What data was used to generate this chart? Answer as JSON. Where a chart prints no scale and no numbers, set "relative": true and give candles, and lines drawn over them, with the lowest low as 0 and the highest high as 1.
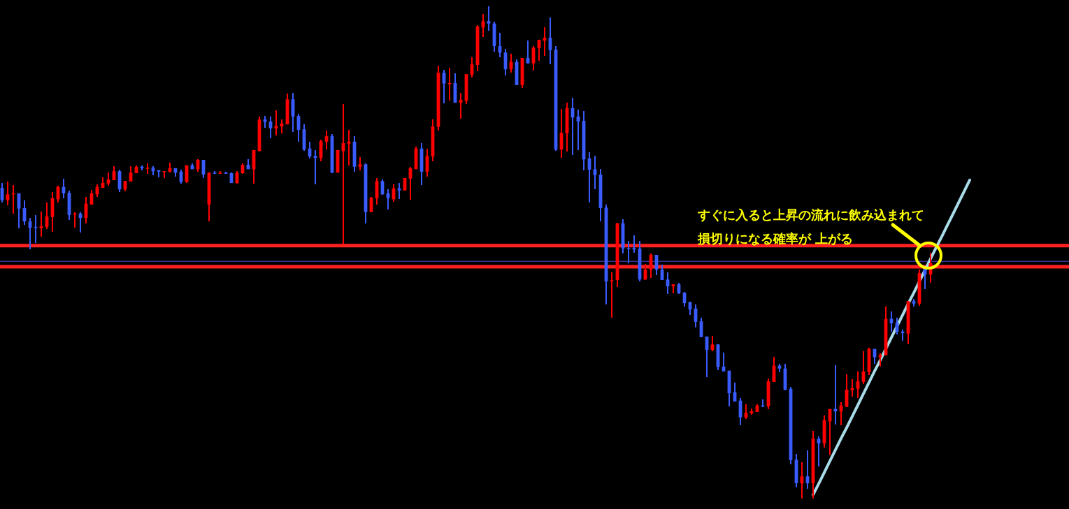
{
  "chart_data": {
    "type": "candlestick",
    "relative": true,
    "categories": [
      null,
      null,
      null,
      null,
      null,
      null,
      null,
      null,
      null,
      null,
      null,
      null,
      null,
      null,
      null,
      null,
      null,
      null,
      null,
      null,
      null,
      null,
      null,
      null,
      null,
      null,
      null,
      null,
      null,
      null,
      null,
      null,
      null,
      null,
      null,
      null,
      null,
      null,
      null,
      null,
      null,
      null,
      null,
      null,
      null,
      null,
      null,
      null,
      null,
      null,
      null,
      null,
      null,
      null,
      null,
      null,
      null,
      null,
      null,
      null,
      null,
      null,
      null,
      null,
      null,
      null,
      null,
      null,
      null,
      null,
      null,
      null,
      null,
      null,
      null,
      null,
      null,
      null,
      null,
      null,
      null,
      null,
      null,
      null,
      null,
      null,
      null,
      null,
      null,
      null,
      null,
      null,
      null,
      null,
      null,
      null,
      null,
      null,
      null,
      null,
      null,
      null,
      null,
      null,
      null,
      null,
      null,
      null,
      null,
      null,
      null,
      null,
      null,
      null,
      null,
      null,
      null,
      null,
      null,
      null,
      null,
      null,
      null,
      null,
      null,
      null,
      null,
      null,
      null,
      null,
      null,
      null,
      null,
      null,
      null,
      null,
      null,
      null,
      null,
      null,
      null,
      null,
      null,
      null,
      null,
      null,
      null,
      null,
      null,
      null,
      null,
      null,
      null,
      null,
      null,
      null,
      null,
      null,
      null,
      null,
      null,
      null,
      null,
      null,
      null,
      null,
      null,
      null,
      null,
      null,
      null,
      null,
      null,
      null
    ],
    "annotations": [
      "すぐに入ると上昇の流れに飲み込まれて",
      "損切りになる確率が 上がる"
    ],
    "ref_lines": [
      {
        "axis": "y",
        "value": 0.514,
        "label": null,
        "color": "#ff2020",
        "line_style": "solid"
      },
      {
        "axis": "y",
        "value": 0.471,
        "label": null,
        "color": "#ff2020",
        "line_style": "solid"
      },
      {
        "axis": "y",
        "value": 0.482,
        "label": null,
        "color": "#4a4ad0",
        "line_style": "solid"
      }
    ],
    "series": [
      {
        "type": "candlestick",
        "ohlc": [
          [
            0.631,
            0.641,
            0.601,
            0.606
          ],
          [
            0.606,
            0.644,
            0.596,
            0.618
          ],
          [
            0.618,
            0.637,
            0.579,
            0.62
          ],
          [
            0.62,
            0.62,
            0.549,
            0.589
          ],
          [
            0.59,
            0.606,
            0.556,
            0.563
          ],
          [
            0.563,
            0.57,
            0.506,
            0.55
          ],
          [
            0.552,
            0.576,
            0.519,
            0.55
          ],
          [
            0.549,
            0.583,
            0.532,
            0.553
          ],
          [
            0.552,
            0.601,
            0.548,
            0.573
          ],
          [
            0.572,
            0.623,
            0.542,
            0.61
          ],
          [
            0.608,
            0.635,
            0.601,
            0.633
          ],
          [
            0.633,
            0.65,
            0.61,
            0.62
          ],
          [
            0.621,
            0.626,
            0.566,
            0.576
          ],
          [
            0.577,
            0.582,
            0.55,
            0.579
          ],
          [
            0.579,
            0.582,
            0.54,
            0.57
          ],
          [
            0.57,
            0.613,
            0.559,
            0.599
          ],
          [
            0.597,
            0.627,
            0.597,
            0.62
          ],
          [
            0.618,
            0.638,
            0.613,
            0.633
          ],
          [
            0.631,
            0.652,
            0.631,
            0.641
          ],
          [
            0.64,
            0.662,
            0.635,
            0.648
          ],
          [
            0.647,
            0.675,
            0.647,
            0.665
          ],
          [
            0.665,
            0.668,
            0.623,
            0.628
          ],
          [
            0.628,
            0.645,
            0.624,
            0.645
          ],
          [
            0.644,
            0.675,
            0.644,
            0.662
          ],
          [
            0.661,
            0.677,
            0.661,
            0.674
          ],
          [
            0.674,
            0.677,
            0.667,
            0.671
          ],
          [
            0.671,
            0.681,
            0.66,
            0.672
          ],
          [
            0.672,
            0.675,
            0.657,
            0.665
          ],
          [
            0.667,
            0.667,
            0.652,
            0.664
          ],
          [
            0.664,
            0.665,
            0.651,
            0.665
          ],
          [
            0.664,
            0.682,
            0.662,
            0.671
          ],
          [
            0.671,
            0.671,
            0.654,
            0.662
          ],
          [
            0.664,
            0.668,
            0.64,
            0.643
          ],
          [
            0.643,
            0.677,
            0.641,
            0.677
          ],
          [
            0.677,
            0.681,
            0.669,
            0.669
          ],
          [
            0.669,
            0.689,
            0.664,
            0.688
          ],
          [
            0.688,
            0.688,
            0.651,
            0.658
          ],
          [
            0.597,
            0.662,
            0.563,
            0.662
          ],
          [
            0.662,
            0.665,
            0.66,
            0.661
          ],
          [
            0.661,
            0.665,
            0.66,
            0.662
          ],
          [
            0.662,
            0.664,
            0.66,
            0.661
          ],
          [
            0.661,
            0.662,
            0.641,
            0.641
          ],
          [
            0.641,
            0.665,
            0.64,
            0.662
          ],
          [
            0.661,
            0.681,
            0.66,
            0.678
          ],
          [
            0.678,
            0.689,
            0.669,
            0.669
          ],
          [
            0.669,
            0.708,
            0.64,
            0.708
          ],
          [
            0.706,
            0.776,
            0.705,
            0.77
          ],
          [
            0.77,
            0.777,
            0.753,
            0.765
          ],
          [
            0.766,
            0.776,
            0.732,
            0.752
          ],
          [
            0.752,
            0.789,
            0.738,
            0.757
          ],
          [
            0.756,
            0.77,
            0.742,
            0.762
          ],
          [
            0.76,
            0.823,
            0.76,
            0.811
          ],
          [
            0.811,
            0.824,
            0.745,
            0.776
          ],
          [
            0.777,
            0.782,
            0.725,
            0.749
          ],
          [
            0.75,
            0.76,
            0.706,
            0.709
          ],
          [
            0.711,
            0.725,
            0.691,
            0.695
          ],
          [
            0.696,
            0.708,
            0.638,
            0.692
          ],
          [
            0.692,
            0.729,
            0.685,
            0.726
          ],
          [
            0.725,
            0.748,
            0.709,
            0.736
          ],
          [
            0.736,
            0.74,
            0.661,
            0.662
          ],
          [
            0.662,
            0.708,
            0.662,
            0.708
          ],
          [
            0.706,
            0.801,
            0.516,
            0.722
          ],
          [
            0.721,
            0.749,
            0.677,
            0.725
          ],
          [
            0.725,
            0.736,
            0.664,
            0.674
          ],
          [
            0.674,
            0.694,
            0.667,
            0.679
          ],
          [
            0.679,
            0.681,
            0.559,
            0.582
          ],
          [
            0.582,
            0.613,
            0.582,
            0.611
          ],
          [
            0.61,
            0.651,
            0.597,
            0.645
          ],
          [
            0.645,
            0.648,
            0.617,
            0.618
          ],
          [
            0.62,
            0.628,
            0.587,
            0.61
          ],
          [
            0.608,
            0.638,
            0.603,
            0.63
          ],
          [
            0.63,
            0.641,
            0.608,
            0.626
          ],
          [
            0.626,
            0.651,
            0.626,
            0.651
          ],
          [
            0.65,
            0.674,
            0.607,
            0.671
          ],
          [
            0.669,
            0.715,
            0.669,
            0.711
          ],
          [
            0.711,
            0.722,
            0.637,
            0.664
          ],
          [
            0.664,
            0.711,
            0.654,
            0.696
          ],
          [
            0.695,
            0.77,
            0.685,
            0.756
          ],
          [
            0.755,
            0.879,
            0.748,
            0.865
          ],
          [
            0.865,
            0.871,
            0.803,
            0.843
          ],
          [
            0.843,
            0.875,
            0.808,
            0.844
          ],
          [
            0.844,
            0.864,
            0.804,
            0.804
          ],
          [
            0.804,
            0.824,
            0.772,
            0.81
          ],
          [
            0.808,
            0.862,
            0.801,
            0.862
          ],
          [
            0.861,
            0.896,
            0.855,
            0.882
          ],
          [
            0.881,
            0.962,
            0.868,
            0.959
          ],
          [
            0.957,
            0.984,
            0.938,
            0.97
          ],
          [
            0.97,
            1,
            0.95,
            0.965
          ],
          [
            0.965,
            0.969,
            0.908,
            0.919
          ],
          [
            0.919,
            0.946,
            0.896,
            0.906
          ],
          [
            0.906,
            0.913,
            0.86,
            0.872
          ],
          [
            0.872,
            0.904,
            0.865,
            0.887
          ],
          [
            0.887,
            0.892,
            0.84,
            0.84
          ],
          [
            0.84,
            0.895,
            0.834,
            0.895
          ],
          [
            0.895,
            0.93,
            0.884,
            0.884
          ],
          [
            0.884,
            0.919,
            0.87,
            0.916
          ],
          [
            0.915,
            0.932,
            0.889,
            0.932
          ],
          [
            0.93,
            0.957,
            0.899,
            0.936
          ],
          [
            0.936,
            0.977,
            0.882,
            0.911
          ],
          [
            0.912,
            0.919,
            0.706,
            0.709
          ],
          [
            0.709,
            0.791,
            0.692,
            0.743
          ],
          [
            0.742,
            0.804,
            0.705,
            0.793
          ],
          [
            0.793,
            0.814,
            0.698,
            0.774
          ],
          [
            0.776,
            0.79,
            0.708,
            0.766
          ],
          [
            0.767,
            0.787,
            0.667,
            0.689
          ],
          [
            0.691,
            0.704,
            0.601,
            0.668
          ],
          [
            0.669,
            0.696,
            0.628,
            0.657
          ],
          [
            0.658,
            0.669,
            0.563,
            0.59
          ],
          [
            0.591,
            0.597,
            0.394,
            0.441
          ],
          [
            0.443,
            0.46,
            0.367,
            0.444
          ],
          [
            0.444,
            0.56,
            0.43,
            0.559
          ],
          [
            0.559,
            0.567,
            0.498,
            0.508
          ],
          [
            0.509,
            0.523,
            0.478,
            0.508
          ],
          [
            0.509,
            0.535,
            0.499,
            0.506
          ],
          [
            0.508,
            0.523,
            0.441,
            0.445
          ],
          [
            0.445,
            0.477,
            0.444,
            0.465
          ],
          [
            0.465,
            0.498,
            0.448,
            0.495
          ],
          [
            0.495,
            0.495,
            0.454,
            0.465
          ],
          [
            0.465,
            0.475,
            0.444,
            0.444
          ],
          [
            0.445,
            0.46,
            0.416,
            0.431
          ],
          [
            0.431,
            0.435,
            0.417,
            0.435
          ],
          [
            0.435,
            0.438,
            0.416,
            0.417
          ],
          [
            0.418,
            0.42,
            0.39,
            0.397
          ],
          [
            0.399,
            0.4,
            0.373,
            0.384
          ],
          [
            0.386,
            0.394,
            0.348,
            0.359
          ],
          [
            0.36,
            0.367,
            0.328,
            0.328
          ],
          [
            0.329,
            0.329,
            0.247,
            0.302
          ],
          [
            0.302,
            0.33,
            0.299,
            0.313
          ],
          [
            0.313,
            0.313,
            0.261,
            0.267
          ],
          [
            0.268,
            0.296,
            0.258,
            0.258
          ],
          [
            0.26,
            0.26,
            0.187,
            0.214
          ],
          [
            0.216,
            0.235,
            0.197,
            0.197
          ],
          [
            0.199,
            0.204,
            0.149,
            0.165
          ],
          [
            0.165,
            0.191,
            0.162,
            0.174
          ],
          [
            0.173,
            0.183,
            0.17,
            0.177
          ],
          [
            0.176,
            0.191,
            0.176,
            0.189
          ],
          [
            0.189,
            0.201,
            0.186,
            0.187
          ],
          [
            0.187,
            0.244,
            0.182,
            0.238
          ],
          [
            0.237,
            0.288,
            0.237,
            0.27
          ],
          [
            0.27,
            0.274,
            0.257,
            0.264
          ],
          [
            0.264,
            0.274,
            0.22,
            0.221
          ],
          [
            0.223,
            0.227,
            0.07,
            0.078
          ],
          [
            0.079,
            0.091,
            0.023,
            0.031
          ],
          [
            0.031,
            0.074,
            0,
            0.045
          ],
          [
            0.045,
            0.098,
            0.02,
            0.031
          ],
          [
            0.031,
            0.138,
            0,
            0.121
          ],
          [
            0.121,
            0.126,
            0.065,
            0.112
          ],
          [
            0.112,
            0.169,
            0.104,
            0.159
          ],
          [
            0.157,
            0.182,
            0.088,
            0.182
          ],
          [
            0.182,
            0.271,
            0.15,
            0.177
          ],
          [
            0.177,
            0.196,
            0.149,
            0.189
          ],
          [
            0.187,
            0.252,
            0.186,
            0.221
          ],
          [
            0.22,
            0.243,
            0.207,
            0.224
          ],
          [
            0.223,
            0.258,
            0.204,
            0.238
          ],
          [
            0.237,
            0.299,
            0.233,
            0.258
          ],
          [
            0.257,
            0.306,
            0.251,
            0.304
          ],
          [
            0.304,
            0.304,
            0.274,
            0.287
          ],
          [
            0.287,
            0.295,
            0.268,
            0.291
          ],
          [
            0.291,
            0.39,
            0.291,
            0.365
          ],
          [
            0.365,
            0.38,
            0.339,
            0.356
          ],
          [
            0.357,
            0.367,
            0.333,
            0.339
          ],
          [
            0.339,
            0.343,
            0.321,
            0.336
          ],
          [
            0.335,
            0.401,
            0.313,
            0.401
          ],
          [
            0.401,
            0.406,
            0.39,
            0.396
          ],
          [
            0.396,
            0.465,
            0.391,
            0.458
          ],
          [
            0.467,
            0.469,
            0.426,
            0.455
          ],
          [
            0.455,
            0.499,
            0.438,
            0.478
          ],
          null,
          null,
          null,
          null,
          null,
          null,
          null
        ],
        "colors": [
          "#3a5cff",
          "#ff0000",
          "#ff0000",
          "#3a5cff",
          "#3a5cff",
          "#3a5cff",
          "#3a5cff",
          "#ff0000",
          "#ff0000",
          "#ff0000",
          "#ff0000",
          "#3a5cff",
          "#3a5cff",
          "#ff0000",
          "#3a5cff",
          "#ff0000",
          "#ff0000",
          "#ff0000",
          "#ff0000",
          "#ff0000",
          "#ff0000",
          "#3a5cff",
          "#ff0000",
          "#ff0000",
          "#ff0000",
          "#3a5cff",
          "#ff0000",
          "#3a5cff",
          "#3a5cff",
          "#ff0000",
          "#ff0000",
          "#3a5cff",
          "#3a5cff",
          "#ff0000",
          "#3a5cff",
          "#ff0000",
          "#3a5cff",
          "#ff0000",
          "#3a5cff",
          "#ff0000",
          "#3a5cff",
          "#3a5cff",
          "#ff0000",
          "#ff0000",
          "#3a5cff",
          "#ff0000",
          "#ff0000",
          "#3a5cff",
          "#3a5cff",
          "#ff0000",
          "#ff0000",
          "#ff0000",
          "#3a5cff",
          "#3a5cff",
          "#3a5cff",
          "#3a5cff",
          "#3a5cff",
          "#ff0000",
          "#ff0000",
          "#3a5cff",
          "#ff0000",
          "#ff0000",
          "#ff0000",
          "#3a5cff",
          "#ff0000",
          "#3a5cff",
          "#ff0000",
          "#ff0000",
          "#3a5cff",
          "#3a5cff",
          "#ff0000",
          "#3a5cff",
          "#ff0000",
          "#ff0000",
          "#ff0000",
          "#3a5cff",
          "#ff0000",
          "#ff0000",
          "#ff0000",
          "#3a5cff",
          "#ff0000",
          "#3a5cff",
          "#ff0000",
          "#ff0000",
          "#ff0000",
          "#ff0000",
          "#ff0000",
          "#3a5cff",
          "#3a5cff",
          "#3a5cff",
          "#3a5cff",
          "#ff0000",
          "#3a5cff",
          "#ff0000",
          "#3a5cff",
          "#ff0000",
          "#ff0000",
          "#ff0000",
          "#3a5cff",
          "#3a5cff",
          "#ff0000",
          "#ff0000",
          "#3a5cff",
          "#3a5cff",
          "#3a5cff",
          "#3a5cff",
          "#3a5cff",
          "#3a5cff",
          "#3a5cff",
          "#ff0000",
          "#ff0000",
          "#3a5cff",
          "#3a5cff",
          "#3a5cff",
          "#3a5cff",
          "#ff0000",
          "#ff0000",
          "#3a5cff",
          "#3a5cff",
          "#3a5cff",
          "#ff0000",
          "#3a5cff",
          "#3a5cff",
          "#3a5cff",
          "#3a5cff",
          "#3a5cff",
          "#3a5cff",
          "#ff0000",
          "#3a5cff",
          "#3a5cff",
          "#3a5cff",
          "#3a5cff",
          "#3a5cff",
          "#ff0000",
          "#ff0000",
          "#ff0000",
          "#3a5cff",
          "#ff0000",
          "#ff0000",
          "#3a5cff",
          "#3a5cff",
          "#3a5cff",
          "#3a5cff",
          "#ff0000",
          "#3a5cff",
          "#ff0000",
          "#3a5cff",
          "#ff0000",
          "#ff0000",
          "#3a5cff",
          "#ff0000",
          "#ff0000",
          "#ff0000",
          "#ff0000",
          "#ff0000",
          "#ff0000",
          "#3a5cff",
          "#ff0000",
          "#ff0000",
          "#3a5cff",
          "#3a5cff",
          "#3a5cff",
          "#ff0000",
          "#3a5cff",
          "#ff0000",
          "#3a5cff",
          "#ff0000",
          null,
          null,
          null,
          null,
          null,
          null,
          null
        ]
      },
      {
        "type": "line",
        "color": "#a8dce8",
        "values": [
          null,
          null,
          null,
          null,
          null,
          null,
          null,
          null,
          null,
          null,
          null,
          null,
          null,
          null,
          null,
          null,
          null,
          null,
          null,
          null,
          null,
          null,
          null,
          null,
          null,
          null,
          null,
          null,
          null,
          null,
          null,
          null,
          null,
          null,
          null,
          null,
          null,
          null,
          null,
          null,
          null,
          null,
          null,
          null,
          null,
          null,
          null,
          null,
          null,
          null,
          null,
          null,
          null,
          null,
          null,
          null,
          null,
          null,
          null,
          null,
          null,
          null,
          null,
          null,
          null,
          null,
          null,
          null,
          null,
          null,
          null,
          null,
          null,
          null,
          null,
          null,
          null,
          null,
          null,
          null,
          null,
          null,
          null,
          null,
          null,
          null,
          null,
          null,
          null,
          null,
          null,
          null,
          null,
          null,
          null,
          null,
          null,
          null,
          null,
          null,
          null,
          null,
          null,
          null,
          null,
          null,
          null,
          null,
          null,
          null,
          null,
          null,
          null,
          null,
          null,
          null,
          null,
          null,
          null,
          null,
          null,
          null,
          null,
          null,
          null,
          null,
          null,
          null,
          null,
          null,
          null,
          null,
          null,
          null,
          null,
          null,
          null,
          null,
          null,
          null,
          null,
          null,
          null,
          null,
          null,
          0.008,
          0.03,
          0.053,
          0.076,
          0.099,
          0.122,
          0.144,
          0.167,
          0.19,
          0.213,
          0.236,
          0.259,
          0.281,
          0.304,
          0.327,
          0.35,
          0.373,
          0.396,
          0.418,
          0.441,
          0.464,
          0.487,
          0.51,
          0.532,
          0.555,
          0.578,
          0.601,
          0.624,
          0.647
        ]
      }
    ]
  }
}
